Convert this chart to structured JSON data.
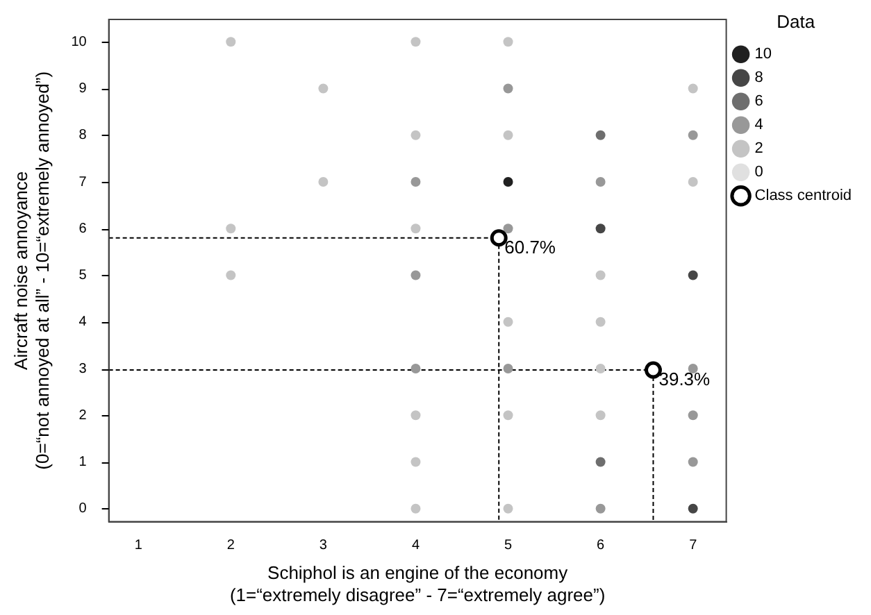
{
  "chart_data": {
    "type": "scatter",
    "xlabel": "Schiphol is an engine of the economy\n(1=“extremely disagree” - 7=“extremely agree”)",
    "ylabel": "Aircraft noise annoyance\n(0=“not annoyed at all” - 10=“extremely annoyed”)",
    "legend_title": "Data",
    "xlim": [
      0.68,
      7.36
    ],
    "xticks": [
      1,
      2,
      3,
      4,
      5,
      6,
      7
    ],
    "ylim": [
      -0.28,
      10.48
    ],
    "yticks": [
      0,
      1,
      2,
      3,
      4,
      5,
      6,
      7,
      8,
      9,
      10
    ],
    "legend": "top right",
    "marker": "circle",
    "series": [
      {
        "name": "10",
        "color": "#202020",
        "x": [
          5
        ],
        "values": [
          7
        ]
      },
      {
        "name": "8",
        "color": "#464646",
        "x": [
          6,
          7,
          7
        ],
        "values": [
          6,
          5,
          0
        ]
      },
      {
        "name": "6",
        "color": "#6e6e6e",
        "x": [
          6,
          6
        ],
        "values": [
          8,
          1
        ]
      },
      {
        "name": "4",
        "color": "#989898",
        "x": [
          4,
          4,
          4,
          5,
          5,
          5,
          6,
          6,
          7,
          7,
          7,
          7
        ],
        "values": [
          7,
          5,
          3,
          9,
          6,
          3,
          7,
          0,
          8,
          3,
          2,
          1
        ]
      },
      {
        "name": "2",
        "color": "#c4c4c4",
        "x": [
          2,
          2,
          2,
          3,
          3,
          4,
          4,
          4,
          4,
          4,
          4,
          5,
          5,
          5,
          5,
          5,
          6,
          6,
          6,
          6,
          7,
          7
        ],
        "values": [
          10,
          6,
          5,
          9,
          7,
          10,
          8,
          6,
          2,
          1,
          0,
          10,
          8,
          4,
          2,
          0,
          5,
          4,
          3,
          2,
          9,
          7
        ]
      },
      {
        "name": "0",
        "color": "#e0e0e0"
      },
      {
        "name": "Class centroid",
        "color": "#000000",
        "x": [
          4.9,
          6.57
        ],
        "values": [
          5.8,
          2.97
        ]
      }
    ],
    "annotations": [
      {
        "text": "60.7%",
        "x": 4.9,
        "y": 5.8
      },
      {
        "text": "39.3%",
        "x": 6.57,
        "y": 2.97
      }
    ]
  }
}
